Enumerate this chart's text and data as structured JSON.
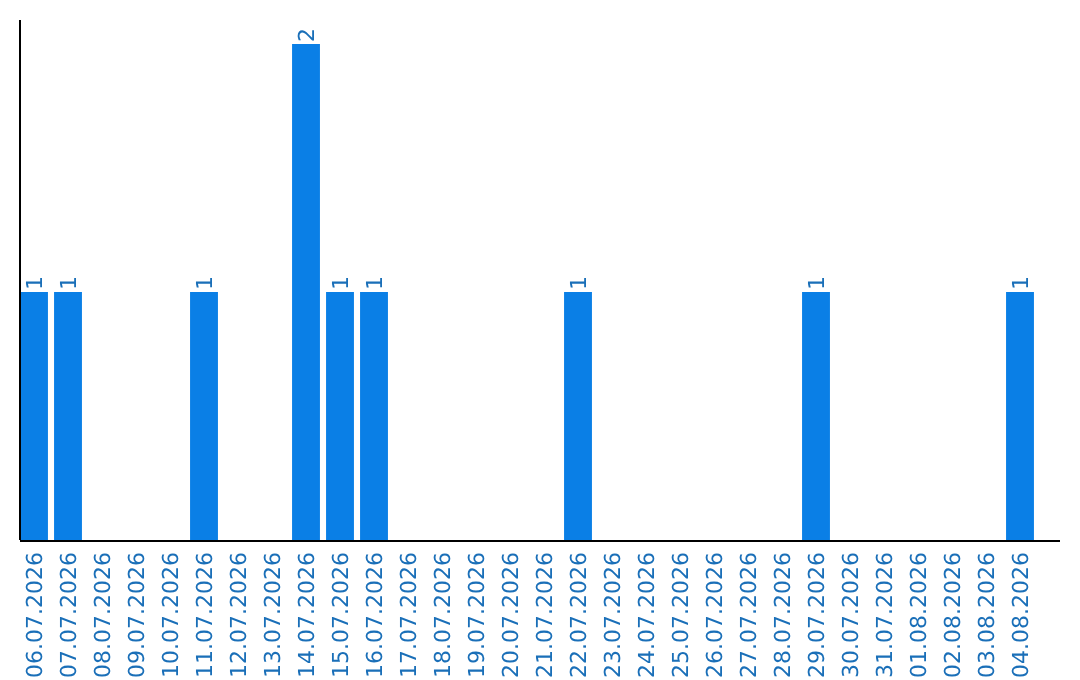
{
  "chart_data": {
    "type": "bar",
    "relative": false,
    "categories": [
      "06.07.2026",
      "07.07.2026",
      "08.07.2026",
      "09.07.2026",
      "10.07.2026",
      "11.07.2026",
      "12.07.2026",
      "13.07.2026",
      "14.07.2026",
      "15.07.2026",
      "16.07.2026",
      "17.07.2026",
      "18.07.2026",
      "19.07.2026",
      "20.07.2026",
      "21.07.2026",
      "22.07.2026",
      "23.07.2026",
      "24.07.2026",
      "25.07.2026",
      "26.07.2026",
      "27.07.2026",
      "28.07.2026",
      "29.07.2026",
      "30.07.2026",
      "31.07.2026",
      "01.08.2026",
      "02.08.2026",
      "03.08.2026",
      "04.08.2026"
    ],
    "values": [
      1,
      1,
      0,
      0,
      0,
      1,
      0,
      0,
      2,
      1,
      1,
      0,
      0,
      0,
      0,
      0,
      1,
      0,
      0,
      0,
      0,
      0,
      0,
      1,
      0,
      0,
      0,
      0,
      0,
      1
    ],
    "color": "#0a7fe6",
    "value_labels": [
      "1",
      "1",
      null,
      null,
      null,
      "1",
      null,
      null,
      "2",
      "1",
      "1",
      null,
      null,
      null,
      null,
      null,
      "1",
      null,
      null,
      null,
      null,
      null,
      null,
      "1",
      null,
      null,
      null,
      null,
      null,
      "1"
    ]
  }
}
